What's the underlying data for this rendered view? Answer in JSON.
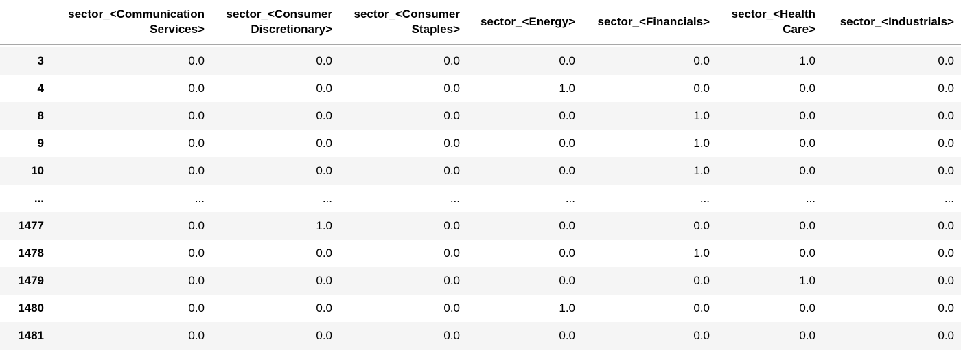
{
  "dataframe": {
    "columns": [
      "sector_<Communication Services>",
      "sector_<Consumer Discretionary>",
      "sector_<Consumer Staples>",
      "sector_<Energy>",
      "sector_<Financials>",
      "sector_<Health Care>",
      "sector_<Industrials>"
    ],
    "rows": [
      {
        "index": "3",
        "values": [
          "0.0",
          "0.0",
          "0.0",
          "0.0",
          "0.0",
          "1.0",
          "0.0"
        ]
      },
      {
        "index": "4",
        "values": [
          "0.0",
          "0.0",
          "0.0",
          "1.0",
          "0.0",
          "0.0",
          "0.0"
        ]
      },
      {
        "index": "8",
        "values": [
          "0.0",
          "0.0",
          "0.0",
          "0.0",
          "1.0",
          "0.0",
          "0.0"
        ]
      },
      {
        "index": "9",
        "values": [
          "0.0",
          "0.0",
          "0.0",
          "0.0",
          "1.0",
          "0.0",
          "0.0"
        ]
      },
      {
        "index": "10",
        "values": [
          "0.0",
          "0.0",
          "0.0",
          "0.0",
          "1.0",
          "0.0",
          "0.0"
        ]
      },
      {
        "index": "...",
        "values": [
          "...",
          "...",
          "...",
          "...",
          "...",
          "...",
          "..."
        ]
      },
      {
        "index": "1477",
        "values": [
          "0.0",
          "1.0",
          "0.0",
          "0.0",
          "0.0",
          "0.0",
          "0.0"
        ]
      },
      {
        "index": "1478",
        "values": [
          "0.0",
          "0.0",
          "0.0",
          "0.0",
          "1.0",
          "0.0",
          "0.0"
        ]
      },
      {
        "index": "1479",
        "values": [
          "0.0",
          "0.0",
          "0.0",
          "0.0",
          "0.0",
          "1.0",
          "0.0"
        ]
      },
      {
        "index": "1480",
        "values": [
          "0.0",
          "0.0",
          "0.0",
          "1.0",
          "0.0",
          "0.0",
          "0.0"
        ]
      },
      {
        "index": "1481",
        "values": [
          "0.0",
          "0.0",
          "0.0",
          "0.0",
          "0.0",
          "0.0",
          "0.0"
        ]
      }
    ]
  },
  "colors": {
    "background": "#ffffff",
    "stripe": "#f5f5f5",
    "header_rule": "#a8a8a8",
    "text": "#000000"
  }
}
